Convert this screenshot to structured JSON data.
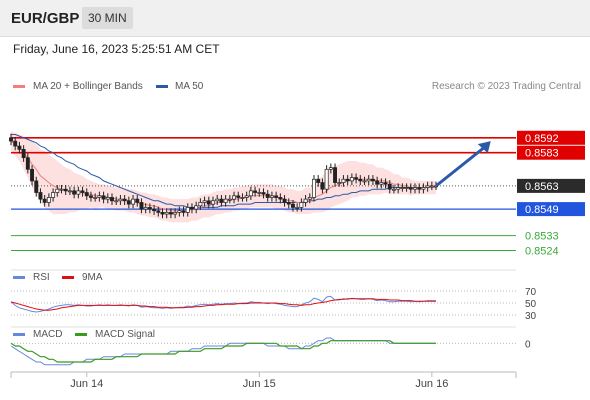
{
  "header": {
    "symbol": "EUR/GBP",
    "timeframe": "30 MIN"
  },
  "date_text": "Friday, June 16, 2023 5:25:51 AM CET",
  "credit": "Research © 2023 Trading Central",
  "colors": {
    "ma20": "#f08080",
    "ma50": "#2a5aa8",
    "bands": "#fde0e0",
    "resistance": "#e00000",
    "support": "#2255dd",
    "target": "#3aa83a",
    "rsi": "#6688dd",
    "rsi_ma": "#dd1111",
    "macd": "#6688dd",
    "macd_signal": "#3a9a20",
    "arrow": "#2a5aa8"
  },
  "chart_data": [
    {
      "type": "line",
      "panel": "price",
      "legend": [
        {
          "name": "MA 20 + Bollinger Bands"
        },
        {
          "name": "MA 50"
        }
      ],
      "ylim": [
        0.85165,
        0.85985
      ],
      "x_ticks": [
        {
          "label": "Jun 14",
          "x": 18
        },
        {
          "label": "Jun 15",
          "x": 59
        },
        {
          "label": "Jun 16",
          "x": 100
        }
      ],
      "xlim": [
        0,
        120
      ],
      "levels": [
        {
          "value": 0.8592,
          "label": "0.8592",
          "role": "resistance"
        },
        {
          "value": 0.8583,
          "label": "0.8583",
          "role": "resistance"
        },
        {
          "value": 0.8563,
          "label": "0.8563",
          "role": "current"
        },
        {
          "value": 0.8549,
          "label": "0.8549",
          "role": "support"
        },
        {
          "value": 0.8533,
          "label": "0.8533",
          "role": "target"
        },
        {
          "value": 0.8524,
          "label": "0.8524",
          "role": "target"
        }
      ],
      "close": [
        0.859,
        0.8587,
        0.8585,
        0.858,
        0.8573,
        0.8566,
        0.8559,
        0.8555,
        0.8553,
        0.8556,
        0.8559,
        0.8561,
        0.8561,
        0.856,
        0.856,
        0.8558,
        0.856,
        0.8559,
        0.8557,
        0.8556,
        0.8556,
        0.8557,
        0.8555,
        0.8556,
        0.8554,
        0.8554,
        0.8555,
        0.8554,
        0.8552,
        0.8555,
        0.8553,
        0.8549,
        0.855,
        0.8549,
        0.8548,
        0.8547,
        0.8546,
        0.8547,
        0.8546,
        0.8547,
        0.8548,
        0.8547,
        0.855,
        0.8549,
        0.8551,
        0.8553,
        0.8554,
        0.8552,
        0.8554,
        0.8555,
        0.8553,
        0.8555,
        0.8555,
        0.8557,
        0.8556,
        0.8556,
        0.8557,
        0.856,
        0.8559,
        0.8559,
        0.8558,
        0.8556,
        0.8557,
        0.8556,
        0.8555,
        0.8553,
        0.8552,
        0.855,
        0.855,
        0.8553,
        0.8555,
        0.8556,
        0.8567,
        0.8565,
        0.8561,
        0.8573,
        0.8574,
        0.8565,
        0.8565,
        0.8567,
        0.8566,
        0.8568,
        0.8567,
        0.8566,
        0.8566,
        0.8567,
        0.8566,
        0.8564,
        0.8565,
        0.8564,
        0.8561,
        0.8561,
        0.8562,
        0.8562,
        0.8562,
        0.8561,
        0.8562,
        0.8561,
        0.8562,
        0.8563,
        0.8563,
        0.8563
      ],
      "ma20": [
        0.859,
        0.8588,
        0.8586,
        0.8583,
        0.858,
        0.8576,
        0.8573,
        0.8569,
        0.8567,
        0.8565,
        0.8563,
        0.8562,
        0.8561,
        0.856,
        0.856,
        0.8559,
        0.8559,
        0.8559,
        0.8558,
        0.8558,
        0.8557,
        0.8557,
        0.8557,
        0.8556,
        0.8556,
        0.8555,
        0.8555,
        0.8555,
        0.8554,
        0.8554,
        0.8553,
        0.8552,
        0.8552,
        0.8551,
        0.8551,
        0.855,
        0.8549,
        0.8549,
        0.8548,
        0.8548,
        0.8548,
        0.8548,
        0.8548,
        0.8549,
        0.8549,
        0.855,
        0.8551,
        0.8551,
        0.8552,
        0.8553,
        0.8553,
        0.8554,
        0.8554,
        0.8555,
        0.8555,
        0.8556,
        0.8556,
        0.8557,
        0.8557,
        0.8557,
        0.8557,
        0.8557,
        0.8557,
        0.8556,
        0.8556,
        0.8555,
        0.8554,
        0.8554,
        0.8553,
        0.8553,
        0.8554,
        0.8554,
        0.8556,
        0.8557,
        0.8558,
        0.856,
        0.8562,
        0.8563,
        0.8564,
        0.8565,
        0.8566,
        0.8567,
        0.8567,
        0.8567,
        0.8567,
        0.8567,
        0.8567,
        0.8566,
        0.8566,
        0.8566,
        0.8565,
        0.8564,
        0.8564,
        0.8563,
        0.8563,
        0.8562,
        0.8562,
        0.8562,
        0.8562,
        0.8562,
        0.8562,
        0.8562
      ],
      "ma50": [
        0.8594,
        0.8594,
        0.8593,
        0.8592,
        0.8591,
        0.859,
        0.8589,
        0.8587,
        0.8586,
        0.8584,
        0.8583,
        0.8581,
        0.858,
        0.8578,
        0.8577,
        0.8576,
        0.8574,
        0.8573,
        0.8572,
        0.857,
        0.8569,
        0.8568,
        0.8566,
        0.8565,
        0.8564,
        0.8563,
        0.8562,
        0.8561,
        0.856,
        0.8559,
        0.8558,
        0.8557,
        0.8556,
        0.8555,
        0.8554,
        0.8554,
        0.8553,
        0.8552,
        0.8552,
        0.8551,
        0.8551,
        0.8551,
        0.855,
        0.855,
        0.855,
        0.855,
        0.855,
        0.855,
        0.855,
        0.855,
        0.8551,
        0.8551,
        0.8551,
        0.8551,
        0.8552,
        0.8552,
        0.8552,
        0.8552,
        0.8553,
        0.8553,
        0.8553,
        0.8553,
        0.8553,
        0.8553,
        0.8553,
        0.8553,
        0.8553,
        0.8553,
        0.8553,
        0.8553,
        0.8553,
        0.8554,
        0.8554,
        0.8555,
        0.8555,
        0.8556,
        0.8556,
        0.8557,
        0.8557,
        0.8558,
        0.8558,
        0.8559,
        0.8559,
        0.856,
        0.856,
        0.856,
        0.8561,
        0.8561,
        0.8561,
        0.8561,
        0.8562,
        0.8562,
        0.8562,
        0.8562,
        0.8562,
        0.8562,
        0.8562,
        0.8562,
        0.8562,
        0.8562,
        0.8562,
        0.8562
      ],
      "band_width": [
        0.0006,
        0.0007,
        0.0008,
        0.001,
        0.0012,
        0.0014,
        0.0015,
        0.0016,
        0.0017,
        0.0017,
        0.0017,
        0.0016,
        0.0015,
        0.0014,
        0.0013,
        0.0012,
        0.0011,
        0.001,
        0.0009,
        0.0008,
        0.0008,
        0.0007,
        0.0007,
        0.0007,
        0.0007,
        0.0007,
        0.0007,
        0.0007,
        0.0007,
        0.0007,
        0.0007,
        0.0007,
        0.0007,
        0.0007,
        0.0007,
        0.0007,
        0.0007,
        0.0007,
        0.0007,
        0.0007,
        0.0007,
        0.0007,
        0.0007,
        0.0007,
        0.0007,
        0.0007,
        0.0007,
        0.0007,
        0.0007,
        0.0007,
        0.0007,
        0.0007,
        0.0007,
        0.0007,
        0.0007,
        0.0007,
        0.0007,
        0.0007,
        0.0007,
        0.0007,
        0.0007,
        0.0007,
        0.0007,
        0.0007,
        0.0007,
        0.0007,
        0.0007,
        0.0007,
        0.0007,
        0.0007,
        0.0008,
        0.0008,
        0.0009,
        0.001,
        0.0011,
        0.0012,
        0.0012,
        0.0012,
        0.0012,
        0.0012,
        0.0012,
        0.0011,
        0.0011,
        0.001,
        0.001,
        0.0009,
        0.0009,
        0.0008,
        0.0008,
        0.0007,
        0.0007,
        0.0006,
        0.0006,
        0.0005,
        0.0005,
        0.0005,
        0.0004,
        0.0004,
        0.0004,
        0.0004,
        0.0004,
        0.0004
      ],
      "forecast": [
        {
          "x": 101,
          "y": 0.8563
        },
        {
          "x": 114,
          "y": 0.859
        }
      ]
    },
    {
      "type": "line",
      "panel": "rsi",
      "legend": [
        {
          "name": "RSI"
        },
        {
          "name": "9MA"
        }
      ],
      "ylim": [
        20,
        80
      ],
      "y_ticks": [
        {
          "label": "70",
          "value": 70
        },
        {
          "label": "50",
          "value": 50
        },
        {
          "label": "30",
          "value": 30
        }
      ],
      "rsi": [
        52,
        46,
        42,
        40,
        38,
        36,
        35,
        36,
        38,
        40,
        43,
        45,
        46,
        47,
        47,
        46,
        47,
        46,
        45,
        45,
        46,
        47,
        46,
        47,
        46,
        46,
        47,
        46,
        45,
        47,
        46,
        43,
        44,
        43,
        42,
        42,
        41,
        42,
        41,
        42,
        43,
        43,
        45,
        44,
        46,
        47,
        48,
        47,
        48,
        49,
        48,
        49,
        49,
        50,
        49,
        50,
        50,
        52,
        51,
        51,
        50,
        49,
        50,
        49,
        48,
        46,
        45,
        44,
        44,
        47,
        50,
        52,
        58,
        56,
        52,
        60,
        61,
        55,
        55,
        57,
        56,
        58,
        57,
        56,
        56,
        57,
        56,
        54,
        55,
        54,
        52,
        52,
        53,
        53,
        53,
        52,
        53,
        52,
        53,
        54,
        54,
        54
      ],
      "ma9": [
        52,
        50,
        48,
        46,
        44,
        42,
        40,
        39,
        38,
        38,
        39,
        40,
        42,
        43,
        44,
        45,
        46,
        46,
        46,
        46,
        46,
        46,
        46,
        46,
        46,
        46,
        46,
        46,
        46,
        46,
        46,
        45,
        45,
        44,
        44,
        43,
        43,
        43,
        42,
        42,
        42,
        42,
        43,
        43,
        44,
        44,
        45,
        46,
        46,
        47,
        47,
        48,
        48,
        48,
        49,
        49,
        49,
        50,
        50,
        50,
        50,
        50,
        50,
        50,
        49,
        49,
        48,
        47,
        47,
        46,
        47,
        47,
        49,
        50,
        51,
        52,
        54,
        55,
        56,
        56,
        57,
        57,
        57,
        57,
        57,
        57,
        57,
        56,
        56,
        56,
        55,
        55,
        55,
        54,
        54,
        54,
        53,
        53,
        53,
        53,
        53,
        53
      ]
    },
    {
      "type": "line",
      "panel": "macd",
      "legend": [
        {
          "name": "MACD"
        },
        {
          "name": "MACD Signal"
        }
      ],
      "ylim": [
        -0.001,
        0.0005
      ],
      "y_ticks": [
        {
          "label": "0",
          "value": 0
        }
      ],
      "macd": [
        -0.0001,
        -0.0002,
        -0.0003,
        -0.0004,
        -0.0005,
        -0.0006,
        -0.0007,
        -0.0007,
        -0.0008,
        -0.0008,
        -0.0008,
        -0.0008,
        -0.0008,
        -0.0008,
        -0.0008,
        -0.0007,
        -0.0007,
        -0.0007,
        -0.0006,
        -0.0006,
        -0.0006,
        -0.0006,
        -0.0005,
        -0.0005,
        -0.0005,
        -0.0005,
        -0.0005,
        -0.0004,
        -0.0004,
        -0.0004,
        -0.0004,
        -0.0004,
        -0.0004,
        -0.0004,
        -0.0004,
        -0.0004,
        -0.0004,
        -0.0004,
        -0.0003,
        -0.0003,
        -0.0003,
        -0.0003,
        -0.0003,
        -0.0002,
        -0.0002,
        -0.0002,
        -0.0001,
        -0.0001,
        -0.0001,
        -0.0001,
        -0.0001,
        -0.0001,
        0,
        0,
        0,
        0,
        0,
        0,
        0,
        0,
        0,
        -0.0001,
        -0.0001,
        -0.0001,
        -0.0001,
        -0.0001,
        -0.0002,
        -0.0002,
        -0.0002,
        -0.0002,
        -0.0001,
        -0.0001,
        0,
        0.0001,
        0.0001,
        0.0002,
        0.0002,
        0.0001,
        0.0001,
        0.0001,
        0.0001,
        0.0001,
        0.0001,
        0.0001,
        0.0001,
        0.0001,
        0.0001,
        0.0001,
        0.0001,
        0.0001,
        0,
        0,
        0,
        0,
        0,
        0,
        0,
        0,
        0,
        0,
        0,
        0
      ],
      "signal": [
        0,
        -0.0001,
        -0.0001,
        -0.0002,
        -0.0003,
        -0.0003,
        -0.0004,
        -0.0005,
        -0.0005,
        -0.0006,
        -0.0006,
        -0.0007,
        -0.0007,
        -0.0007,
        -0.0007,
        -0.0007,
        -0.0007,
        -0.0007,
        -0.0007,
        -0.0007,
        -0.0006,
        -0.0006,
        -0.0006,
        -0.0006,
        -0.0006,
        -0.0005,
        -0.0005,
        -0.0005,
        -0.0005,
        -0.0005,
        -0.0005,
        -0.0004,
        -0.0004,
        -0.0004,
        -0.0004,
        -0.0004,
        -0.0004,
        -0.0004,
        -0.0004,
        -0.0004,
        -0.0003,
        -0.0003,
        -0.0003,
        -0.0003,
        -0.0003,
        -0.0003,
        -0.0002,
        -0.0002,
        -0.0002,
        -0.0002,
        -0.0002,
        -0.0001,
        -0.0001,
        -0.0001,
        -0.0001,
        -0.0001,
        0,
        0,
        0,
        0,
        0,
        0,
        0,
        0,
        -0.0001,
        -0.0001,
        -0.0001,
        -0.0001,
        -0.0001,
        -0.0002,
        -0.0002,
        -0.0002,
        -0.0001,
        -0.0001,
        0,
        0,
        0.0001,
        0.0001,
        0.0001,
        0.0001,
        0.0001,
        0.0001,
        0.0001,
        0.0001,
        0.0001,
        0.0001,
        0.0001,
        0.0001,
        0.0001,
        0.0001,
        0.0001,
        0,
        0,
        0,
        0,
        0,
        0,
        0,
        0,
        0,
        0,
        0
      ]
    }
  ]
}
